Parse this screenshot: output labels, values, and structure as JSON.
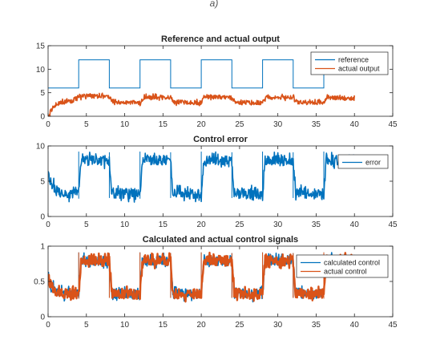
{
  "caption_fragment": "a)",
  "colors": {
    "blue": "#0072BD",
    "orange": "#D95319"
  },
  "chart_data": [
    {
      "type": "line",
      "title": "Reference and actual output",
      "xlim": [
        0,
        45
      ],
      "ylim": [
        0,
        15
      ],
      "xticks": [
        0,
        5,
        10,
        15,
        20,
        25,
        30,
        35,
        40,
        45
      ],
      "yticks": [
        0,
        5,
        10,
        15
      ],
      "legend_position": "top-right",
      "series": [
        {
          "name": "reference",
          "color": "#0072BD",
          "style": "step",
          "x": [
            0,
            4,
            4,
            8,
            8,
            12,
            12,
            16,
            16,
            20,
            20,
            24,
            24,
            28,
            28,
            32,
            32,
            36,
            36,
            40
          ],
          "y": [
            6,
            6,
            12,
            12,
            6,
            6,
            12,
            12,
            6,
            6,
            12,
            12,
            6,
            6,
            12,
            12,
            6,
            6,
            12,
            12
          ]
        },
        {
          "name": "actual output",
          "color": "#D95319",
          "style": "noisy-band",
          "x": [
            0,
            0.5,
            1,
            2,
            3,
            4,
            4.5,
            8,
            8.5,
            12,
            12.5,
            16,
            16.5,
            20,
            20.5,
            24,
            24.5,
            28,
            28.5,
            32,
            32.5,
            36,
            36.5,
            40
          ],
          "y": [
            0,
            1.5,
            2.5,
            3,
            3.2,
            4,
            4.3,
            4.2,
            3,
            2.9,
            4.1,
            4.0,
            3.0,
            2.9,
            4.1,
            4.0,
            3.0,
            2.9,
            4.1,
            4.0,
            3.0,
            2.9,
            4.0,
            3.8
          ],
          "noise": 0.45
        }
      ]
    },
    {
      "type": "line",
      "title": "Control error",
      "xlim": [
        0,
        45
      ],
      "ylim": [
        0,
        10
      ],
      "xticks": [
        0,
        5,
        10,
        15,
        20,
        25,
        30,
        35,
        40,
        45
      ],
      "yticks": [
        0,
        5,
        10
      ],
      "legend_position": "top-right",
      "series": [
        {
          "name": "error",
          "color": "#0072BD",
          "style": "noisy-band",
          "x": [
            0,
            0.3,
            1,
            2,
            4,
            4.3,
            8,
            8.3,
            12,
            12.3,
            16,
            16.3,
            20,
            20.3,
            24,
            24.3,
            28,
            28.3,
            32,
            32.3,
            36,
            36.3,
            40
          ],
          "y": [
            6,
            5,
            3.8,
            3.3,
            3.2,
            8.0,
            7.9,
            3.3,
            3.2,
            8.0,
            7.9,
            3.3,
            3.2,
            8.0,
            7.9,
            3.3,
            3.2,
            8.0,
            7.9,
            3.3,
            3.2,
            8.0,
            8.0
          ],
          "noise": 0.75
        }
      ]
    },
    {
      "type": "line",
      "title": "Calculated and actual control signals",
      "xlim": [
        0,
        45
      ],
      "ylim": [
        0,
        1
      ],
      "xticks": [
        0,
        5,
        10,
        15,
        20,
        25,
        30,
        35,
        40,
        45
      ],
      "yticks": [
        0,
        0.5,
        1
      ],
      "legend_position": "top-right",
      "series": [
        {
          "name": "calculated control",
          "color": "#0072BD",
          "style": "noisy-band",
          "x": [
            0,
            0.3,
            1,
            2,
            4,
            4.3,
            8,
            8.3,
            12,
            12.3,
            16,
            16.3,
            20,
            20.3,
            24,
            24.3,
            28,
            28.3,
            32,
            32.3,
            36,
            36.3,
            40
          ],
          "y": [
            0.6,
            0.45,
            0.36,
            0.33,
            0.32,
            0.8,
            0.79,
            0.33,
            0.32,
            0.8,
            0.79,
            0.33,
            0.32,
            0.8,
            0.79,
            0.33,
            0.32,
            0.8,
            0.79,
            0.33,
            0.32,
            0.8,
            0.8
          ],
          "noise": 0.07
        },
        {
          "name": "actual control",
          "color": "#D95319",
          "style": "noisy-band",
          "x": [
            0,
            0.3,
            1,
            2,
            4,
            4.3,
            8,
            8.3,
            12,
            12.3,
            16,
            16.3,
            20,
            20.3,
            24,
            24.3,
            28,
            28.3,
            32,
            32.3,
            36,
            36.3,
            40
          ],
          "y": [
            0.6,
            0.45,
            0.36,
            0.33,
            0.32,
            0.8,
            0.79,
            0.33,
            0.32,
            0.8,
            0.79,
            0.33,
            0.32,
            0.8,
            0.79,
            0.33,
            0.32,
            0.8,
            0.79,
            0.33,
            0.32,
            0.8,
            0.8
          ],
          "noise": 0.07
        }
      ]
    }
  ]
}
